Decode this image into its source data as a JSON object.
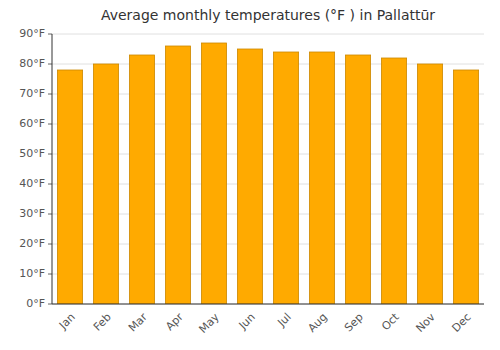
{
  "chart_data": {
    "type": "bar",
    "title": "Average monthly temperatures (°F ) in Pallattūr",
    "categories": [
      "Jan",
      "Feb",
      "Mar",
      "Apr",
      "May",
      "Jun",
      "Jul",
      "Aug",
      "Sep",
      "Oct",
      "Nov",
      "Dec"
    ],
    "values": [
      78,
      80,
      83,
      86,
      87,
      85,
      84,
      84,
      83,
      82,
      80,
      78
    ],
    "color": "#FFAA00",
    "ylim": [
      0,
      90
    ],
    "yticks": [
      {
        "value": 0,
        "label": "0°F"
      },
      {
        "value": 10,
        "label": "10°F"
      },
      {
        "value": 20,
        "label": "20°F"
      },
      {
        "value": 30,
        "label": "30°F"
      },
      {
        "value": 40,
        "label": "40°F"
      },
      {
        "value": 50,
        "label": "50°F"
      },
      {
        "value": 60,
        "label": "60°F"
      },
      {
        "value": 70,
        "label": "70°F"
      },
      {
        "value": 80,
        "label": "80°F"
      },
      {
        "value": 90,
        "label": "90°F"
      }
    ],
    "grid": true
  }
}
